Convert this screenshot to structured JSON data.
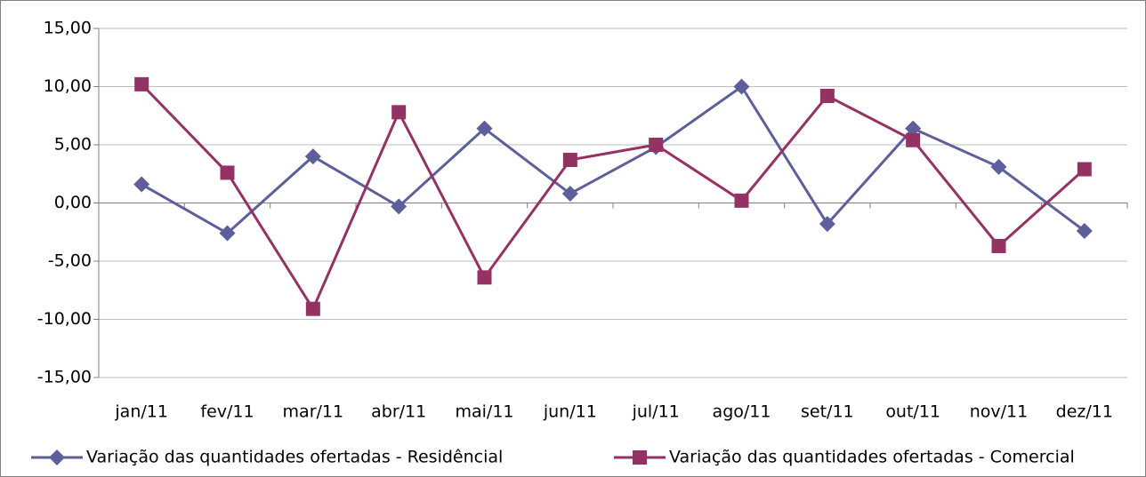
{
  "chart_data": {
    "type": "line",
    "categories": [
      "jan/11",
      "fev/11",
      "mar/11",
      "abr/11",
      "mai/11",
      "jun/11",
      "jul/11",
      "ago/11",
      "set/11",
      "out/11",
      "nov/11",
      "dez/11"
    ],
    "series": [
      {
        "name": "Variação das quantidades ofertadas - Residêncial",
        "color": "#5d5f9c",
        "marker": "diamond",
        "values": [
          1.6,
          -2.6,
          4.0,
          -0.3,
          6.4,
          0.8,
          4.8,
          10.0,
          -1.8,
          6.4,
          3.1,
          -2.4
        ]
      },
      {
        "name": "Variação das quantidades ofertadas - Comercial",
        "color": "#953264",
        "marker": "square",
        "values": [
          10.2,
          2.6,
          -9.1,
          7.8,
          -6.4,
          3.7,
          5.0,
          0.2,
          9.2,
          5.4,
          -3.7,
          2.9
        ]
      }
    ],
    "ylim": [
      -15,
      15
    ],
    "yticks": [
      {
        "value": -15,
        "label": "-15,00"
      },
      {
        "value": -10,
        "label": "-10,00"
      },
      {
        "value": -5,
        "label": "-5,00"
      },
      {
        "value": 0,
        "label": "0,00"
      },
      {
        "value": 5,
        "label": "5,00"
      },
      {
        "value": 10,
        "label": "10,00"
      },
      {
        "value": 15,
        "label": "15,00"
      }
    ],
    "grid": true,
    "legend": "bottom"
  }
}
